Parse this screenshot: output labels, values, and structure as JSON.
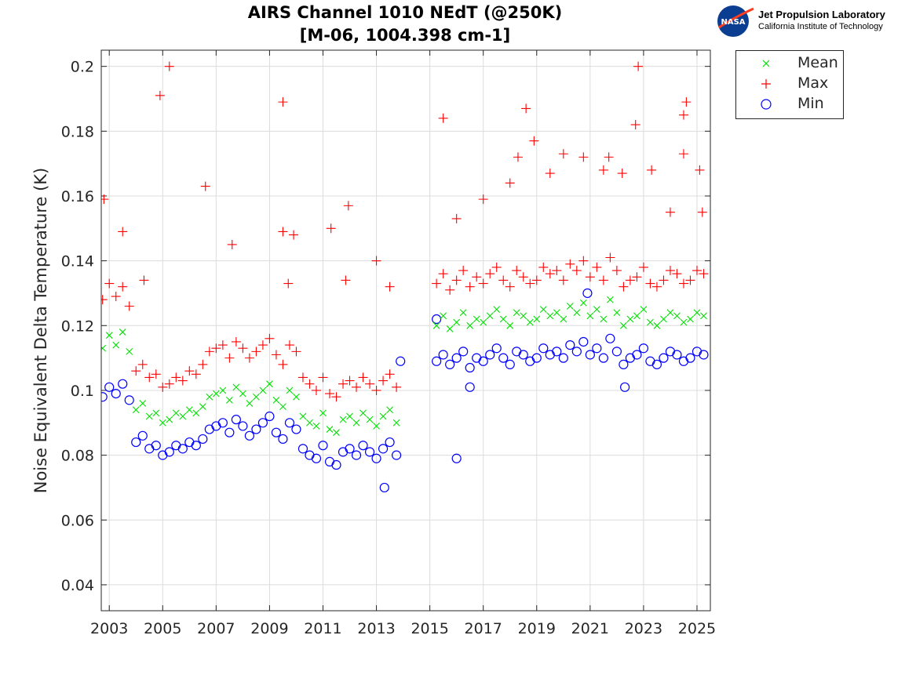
{
  "title_line1": "AIRS Channel 1010 NEdT (@250K)",
  "title_line2": "[M-06, 1004.398 cm-1]",
  "logo": {
    "org": "Jet Propulsion Laboratory",
    "sub": "California Institute of Technology",
    "badge": "NASA"
  },
  "legend": [
    {
      "label": "Mean",
      "color": "#00e000",
      "marker": "x"
    },
    {
      "label": "Max",
      "color": "#ff0000",
      "marker": "+"
    },
    {
      "label": "Min",
      "color": "#0000ff",
      "marker": "o"
    }
  ],
  "chart_data": {
    "type": "scatter",
    "title": "AIRS Channel 1010 NEdT (@250K) [M-06, 1004.398 cm-1]",
    "xlabel": "",
    "ylabel": "Noise Equivalent Delta Temperature (K)",
    "xlim": [
      2002.7,
      2025.5
    ],
    "ylim": [
      0.032,
      0.205
    ],
    "xticks": [
      2003,
      2005,
      2007,
      2009,
      2011,
      2013,
      2015,
      2017,
      2019,
      2021,
      2023,
      2025
    ],
    "yticks": [
      0.04,
      0.06,
      0.08,
      0.1,
      0.12,
      0.14,
      0.16,
      0.18,
      0.2
    ],
    "ytick_labels": [
      "0.04",
      "0.06",
      "0.08",
      "0.1",
      "0.12",
      "0.14",
      "0.16",
      "0.18",
      "0.2"
    ],
    "grid": true,
    "legend_position": "outside-top-right",
    "x": [
      2002.75,
      2003.0,
      2003.25,
      2003.5,
      2003.75,
      2004.0,
      2004.25,
      2004.5,
      2004.75,
      2005.0,
      2005.25,
      2005.5,
      2005.75,
      2006.0,
      2006.25,
      2006.5,
      2006.75,
      2007.0,
      2007.25,
      2007.5,
      2007.75,
      2008.0,
      2008.25,
      2008.5,
      2008.75,
      2009.0,
      2009.25,
      2009.5,
      2009.75,
      2010.0,
      2010.25,
      2010.5,
      2010.75,
      2011.0,
      2011.25,
      2011.5,
      2011.75,
      2012.0,
      2012.25,
      2012.5,
      2012.75,
      2013.0,
      2013.25,
      2013.5,
      2013.75,
      2015.25,
      2015.5,
      2015.75,
      2016.0,
      2016.25,
      2016.5,
      2016.75,
      2017.0,
      2017.25,
      2017.5,
      2017.75,
      2018.0,
      2018.25,
      2018.5,
      2018.75,
      2019.0,
      2019.25,
      2019.5,
      2019.75,
      2020.0,
      2020.25,
      2020.5,
      2020.75,
      2021.0,
      2021.25,
      2021.5,
      2021.75,
      2022.0,
      2022.25,
      2022.5,
      2022.75,
      2023.0,
      2023.25,
      2023.5,
      2023.75,
      2024.0,
      2024.25,
      2024.5,
      2024.75,
      2025.0,
      2025.25
    ],
    "series": [
      {
        "name": "Mean",
        "marker": "x",
        "color": "#00e000",
        "values": [
          0.113,
          0.117,
          0.114,
          0.118,
          0.112,
          0.094,
          0.096,
          0.092,
          0.093,
          0.09,
          0.091,
          0.093,
          0.092,
          0.094,
          0.093,
          0.095,
          0.098,
          0.099,
          0.1,
          0.097,
          0.101,
          0.099,
          0.096,
          0.098,
          0.1,
          0.102,
          0.097,
          0.095,
          0.1,
          0.098,
          0.092,
          0.09,
          0.089,
          0.093,
          0.088,
          0.087,
          0.091,
          0.092,
          0.09,
          0.093,
          0.091,
          0.089,
          0.092,
          0.094,
          0.09,
          0.12,
          0.123,
          0.119,
          0.121,
          0.124,
          0.12,
          0.122,
          0.121,
          0.123,
          0.125,
          0.122,
          0.12,
          0.124,
          0.123,
          0.121,
          0.122,
          0.125,
          0.123,
          0.124,
          0.122,
          0.126,
          0.124,
          0.127,
          0.123,
          0.125,
          0.122,
          0.128,
          0.124,
          0.12,
          0.122,
          0.123,
          0.125,
          0.121,
          0.12,
          0.122,
          0.124,
          0.123,
          0.121,
          0.122,
          0.124,
          0.123
        ]
      },
      {
        "name": "Max",
        "marker": "+",
        "color": "#ff0000",
        "values": [
          0.128,
          0.133,
          0.129,
          0.132,
          0.126,
          0.106,
          0.108,
          0.104,
          0.105,
          0.101,
          0.102,
          0.104,
          0.103,
          0.106,
          0.105,
          0.108,
          0.112,
          0.113,
          0.114,
          0.11,
          0.115,
          0.113,
          0.11,
          0.112,
          0.114,
          0.116,
          0.111,
          0.108,
          0.114,
          0.112,
          0.104,
          0.102,
          0.1,
          0.104,
          0.099,
          0.098,
          0.102,
          0.103,
          0.101,
          0.104,
          0.102,
          0.1,
          0.103,
          0.105,
          0.101,
          0.133,
          0.136,
          0.131,
          0.134,
          0.137,
          0.132,
          0.135,
          0.133,
          0.136,
          0.138,
          0.134,
          0.132,
          0.137,
          0.135,
          0.133,
          0.134,
          0.138,
          0.136,
          0.137,
          0.134,
          0.139,
          0.137,
          0.14,
          0.135,
          0.138,
          0.134,
          0.141,
          0.137,
          0.132,
          0.134,
          0.135,
          0.138,
          0.133,
          0.132,
          0.134,
          0.137,
          0.136,
          0.133,
          0.134,
          0.137,
          0.136
        ],
        "outliers": [
          [
            2002.8,
            0.159
          ],
          [
            2003.5,
            0.149
          ],
          [
            2004.3,
            0.134
          ],
          [
            2004.9,
            0.191
          ],
          [
            2005.25,
            0.2
          ],
          [
            2006.6,
            0.163
          ],
          [
            2007.6,
            0.145
          ],
          [
            2009.5,
            0.189
          ],
          [
            2009.5,
            0.149
          ],
          [
            2009.7,
            0.133
          ],
          [
            2009.9,
            0.148
          ],
          [
            2011.3,
            0.15
          ],
          [
            2011.85,
            0.134
          ],
          [
            2011.95,
            0.157
          ],
          [
            2013.0,
            0.14
          ],
          [
            2013.5,
            0.132
          ],
          [
            2015.5,
            0.184
          ],
          [
            2016.0,
            0.153
          ],
          [
            2017.0,
            0.159
          ],
          [
            2018.0,
            0.164
          ],
          [
            2018.3,
            0.172
          ],
          [
            2018.6,
            0.187
          ],
          [
            2018.9,
            0.177
          ],
          [
            2019.5,
            0.167
          ],
          [
            2020.0,
            0.173
          ],
          [
            2020.75,
            0.172
          ],
          [
            2021.5,
            0.168
          ],
          [
            2021.7,
            0.172
          ],
          [
            2022.2,
            0.167
          ],
          [
            2022.7,
            0.182
          ],
          [
            2022.8,
            0.2
          ],
          [
            2023.3,
            0.168
          ],
          [
            2024.0,
            0.155
          ],
          [
            2024.5,
            0.173
          ],
          [
            2024.5,
            0.185
          ],
          [
            2024.6,
            0.189
          ],
          [
            2025.1,
            0.168
          ],
          [
            2025.2,
            0.155
          ]
        ]
      },
      {
        "name": "Min",
        "marker": "o",
        "color": "#0000ff",
        "values": [
          0.098,
          0.101,
          0.099,
          0.102,
          0.097,
          0.084,
          0.086,
          0.082,
          0.083,
          0.08,
          0.081,
          0.083,
          0.082,
          0.084,
          0.083,
          0.085,
          0.088,
          0.089,
          0.09,
          0.087,
          0.091,
          0.089,
          0.086,
          0.088,
          0.09,
          0.092,
          0.087,
          0.085,
          0.09,
          0.088,
          0.082,
          0.08,
          0.079,
          0.083,
          0.078,
          0.077,
          0.081,
          0.082,
          0.08,
          0.083,
          0.081,
          0.079,
          0.082,
          0.084,
          0.08,
          0.109,
          0.111,
          0.108,
          0.11,
          0.112,
          0.107,
          0.11,
          0.109,
          0.111,
          0.113,
          0.11,
          0.108,
          0.112,
          0.111,
          0.109,
          0.11,
          0.113,
          0.111,
          0.112,
          0.11,
          0.114,
          0.112,
          0.115,
          0.111,
          0.113,
          0.11,
          0.116,
          0.112,
          0.108,
          0.11,
          0.111,
          0.113,
          0.109,
          0.108,
          0.11,
          0.112,
          0.111,
          0.109,
          0.11,
          0.112,
          0.111
        ],
        "outliers": [
          [
            2013.3,
            0.07
          ],
          [
            2013.9,
            0.109
          ],
          [
            2015.25,
            0.122
          ],
          [
            2016.0,
            0.079
          ],
          [
            2016.5,
            0.101
          ],
          [
            2020.9,
            0.13
          ],
          [
            2022.3,
            0.101
          ]
        ]
      }
    ]
  }
}
